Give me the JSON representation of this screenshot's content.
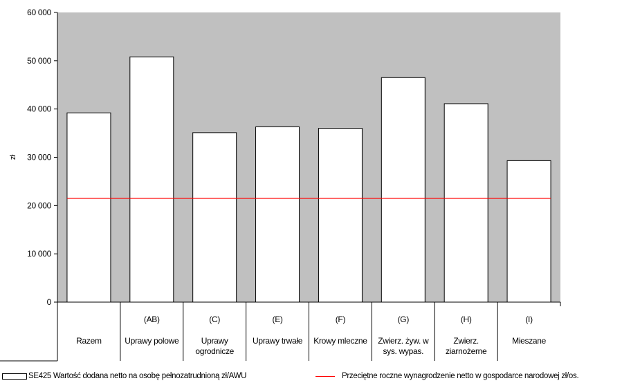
{
  "chart_data": {
    "type": "bar",
    "ylabel": "zł",
    "ylim": [
      0,
      60000
    ],
    "yticks": [
      0,
      10000,
      20000,
      30000,
      40000,
      50000,
      60000
    ],
    "ytick_labels": [
      "0",
      "10 000",
      "20 000",
      "30 000",
      "40 000",
      "50 000",
      "60 000"
    ],
    "categories": [
      {
        "code": "",
        "label": [
          "Razem"
        ]
      },
      {
        "code": "(AB)",
        "label": [
          "Uprawy polowe"
        ]
      },
      {
        "code": "(C)",
        "label": [
          "Uprawy",
          "ogrodnicze"
        ]
      },
      {
        "code": "(E)",
        "label": [
          "Uprawy trwałe"
        ]
      },
      {
        "code": "(F)",
        "label": [
          "Krowy mleczne"
        ]
      },
      {
        "code": "(G)",
        "label": [
          "Zwierz. żyw. w",
          "sys. wypas."
        ]
      },
      {
        "code": "(H)",
        "label": [
          "Zwierz.",
          "ziarnożerne"
        ]
      },
      {
        "code": "(I)",
        "label": [
          "Mieszane"
        ]
      }
    ],
    "series": [
      {
        "name": "SE425 Wartość dodana netto na osobę pełnozatrudnioną zł/AWU",
        "kind": "bar",
        "values": [
          39200,
          50800,
          35100,
          36300,
          36000,
          46500,
          41100,
          29300
        ]
      },
      {
        "name": "Przeciętne roczne wynagrodzenie netto w gospodarce narodowej zł/os.",
        "kind": "line",
        "value": 21500
      }
    ],
    "colors": {
      "plot_bg": "#c0c0c0",
      "bar_fill": "#ffffff",
      "bar_stroke": "#000000",
      "line": "#ff0000"
    },
    "grid": false,
    "legend_position": "bottom"
  },
  "legend": {
    "bar_label": "SE425 Wartość dodana netto na osobę pełnozatrudnioną  zł/AWU",
    "line_label": "Przeciętne roczne wynagrodzenie netto w gospodarce narodowej zł/os."
  }
}
